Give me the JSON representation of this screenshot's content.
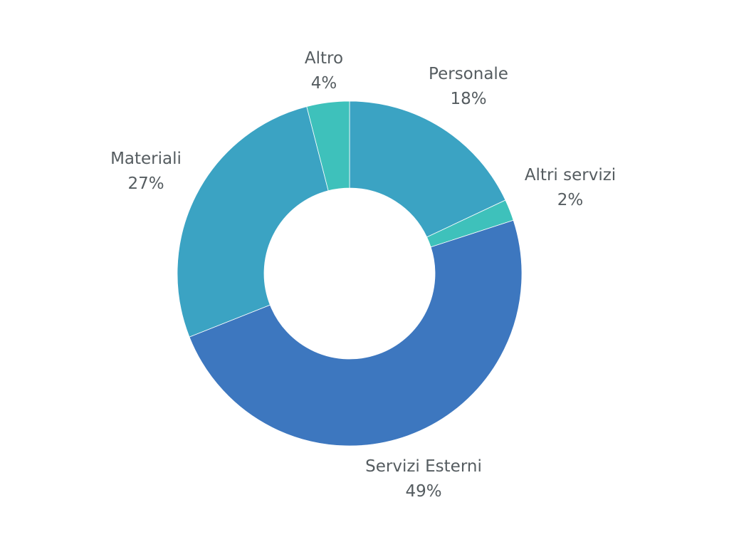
{
  "chart_data": {
    "type": "pie",
    "donut": true,
    "start_angle_deg": 0,
    "direction": "clockwise",
    "slices": [
      {
        "label": "Personale",
        "value": 18,
        "value_label": "18%",
        "color": "#3ba3c3"
      },
      {
        "label": "Altri servizi",
        "value": 2,
        "value_label": "2%",
        "color": "#3ec1bb"
      },
      {
        "label": "Servizi Esterni",
        "value": 49,
        "value_label": "49%",
        "color": "#3d77bf"
      },
      {
        "label": "Materiali",
        "value": 27,
        "value_label": "27%",
        "color": "#3ba3c3"
      },
      {
        "label": "Altro",
        "value": 4,
        "value_label": "4%",
        "color": "#3ec1bb"
      }
    ],
    "legend": "none"
  }
}
